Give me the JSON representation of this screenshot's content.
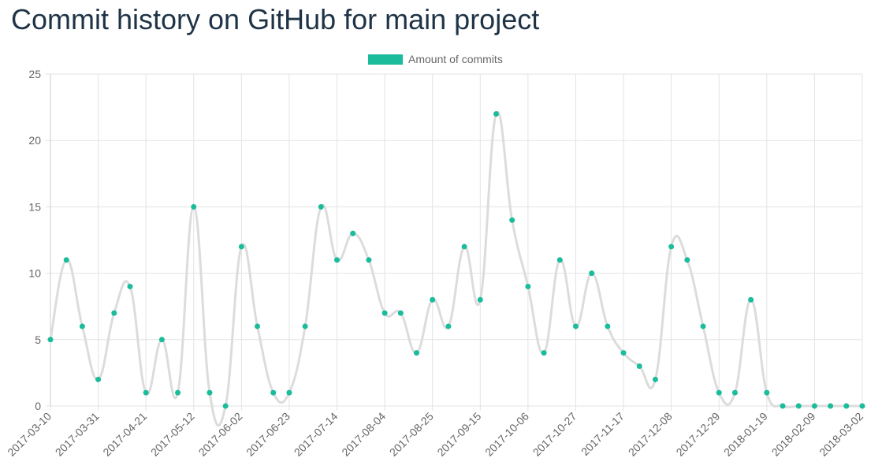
{
  "page": {
    "title": "Commit history on GitHub for main project"
  },
  "chart_data": {
    "type": "line",
    "title": "",
    "xlabel": "",
    "ylabel": "",
    "x": [
      "2017-03-10",
      "2017-03-17",
      "2017-03-24",
      "2017-03-31",
      "2017-04-07",
      "2017-04-14",
      "2017-04-21",
      "2017-04-28",
      "2017-05-05",
      "2017-05-12",
      "2017-05-19",
      "2017-05-26",
      "2017-06-02",
      "2017-06-09",
      "2017-06-16",
      "2017-06-23",
      "2017-06-30",
      "2017-07-07",
      "2017-07-14",
      "2017-07-21",
      "2017-07-28",
      "2017-08-04",
      "2017-08-11",
      "2017-08-18",
      "2017-08-25",
      "2017-09-01",
      "2017-09-08",
      "2017-09-15",
      "2017-09-22",
      "2017-09-29",
      "2017-10-06",
      "2017-10-13",
      "2017-10-20",
      "2017-10-27",
      "2017-11-03",
      "2017-11-10",
      "2017-11-17",
      "2017-11-24",
      "2017-12-01",
      "2017-12-08",
      "2017-12-15",
      "2017-12-22",
      "2017-12-29",
      "2018-01-05",
      "2018-01-12",
      "2018-01-19",
      "2018-01-26",
      "2018-02-02",
      "2018-02-09",
      "2018-02-16",
      "2018-02-23",
      "2018-03-02"
    ],
    "x_tick_labels": [
      "2017-03-10",
      "2017-03-31",
      "2017-04-21",
      "2017-05-12",
      "2017-06-02",
      "2017-06-23",
      "2017-07-14",
      "2017-08-04",
      "2017-08-25",
      "2017-09-15",
      "2017-10-06",
      "2017-10-27",
      "2017-11-17",
      "2017-12-08",
      "2017-12-29",
      "2018-01-19",
      "2018-02-09",
      "2018-03-02"
    ],
    "series": [
      {
        "name": "Amount of commits",
        "values": [
          5,
          11,
          6,
          2,
          7,
          9,
          1,
          5,
          1,
          15,
          1,
          0,
          12,
          6,
          1,
          1,
          6,
          15,
          11,
          13,
          11,
          7,
          7,
          4,
          8,
          6,
          12,
          8,
          22,
          14,
          9,
          4,
          11,
          6,
          10,
          6,
          4,
          3,
          2,
          12,
          11,
          6,
          1,
          1,
          8,
          1,
          0,
          0,
          0,
          0,
          0,
          0
        ]
      }
    ],
    "ylim": [
      0,
      25
    ],
    "y_ticks": [
      0,
      5,
      10,
      15,
      20,
      25
    ],
    "grid": true,
    "legend_position": "top-center",
    "colors": {
      "point": "#1abc9c",
      "line": "#dcdcdc",
      "grid": "#e3e3e3",
      "text": "#666666",
      "title": "#1f3347"
    }
  }
}
